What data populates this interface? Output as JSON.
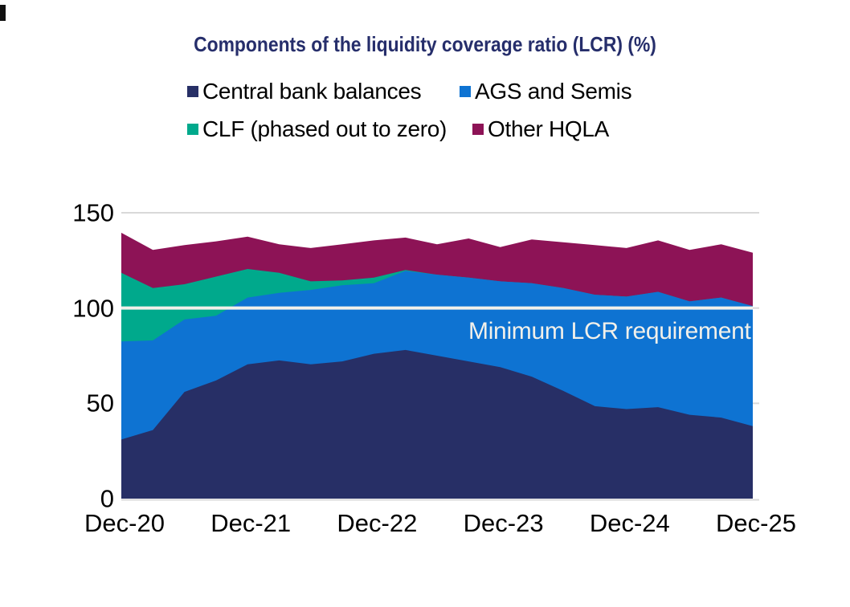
{
  "title": {
    "text": "Components of the liquidity coverage ratio (LCR) (%)",
    "color": "#262e6b"
  },
  "annotation": {
    "label": "Minimum LCR requirement"
  },
  "colors": {
    "background": "#ffffff",
    "gridline": "#d9d9d9",
    "axis_text": "#000000",
    "reference_line": "#f1f0ea"
  },
  "chart_data": {
    "type": "area",
    "stacked": true,
    "title": "Components of the liquidity coverage ratio (LCR) (%)",
    "legend_position": "top",
    "grid": "single line at 150 plus right-edge ticks",
    "ylim": [
      0,
      150
    ],
    "y_ticks": [
      150,
      100,
      50,
      0
    ],
    "x": [
      "Dec-20",
      "Mar-21",
      "Jun-21",
      "Sep-21",
      "Dec-21",
      "Mar-22",
      "Jun-22",
      "Sep-22",
      "Dec-22",
      "Mar-23",
      "Jun-23",
      "Sep-23",
      "Dec-23",
      "Mar-24",
      "Jun-24",
      "Sep-24",
      "Dec-24",
      "Mar-25",
      "Jun-25",
      "Sep-25",
      "Dec-25"
    ],
    "x_tick_labels": [
      "Dec-20",
      "Dec-21",
      "Dec-22",
      "Dec-23",
      "Dec-24",
      "Dec-25"
    ],
    "x_tick_indices": [
      0,
      4,
      8,
      12,
      16,
      20
    ],
    "series": [
      {
        "name": "Central bank balances",
        "color": "#272f66",
        "values": [
          31,
          36,
          56,
          62,
          70.5,
          72.5,
          70.5,
          72,
          76,
          78,
          75,
          72,
          69,
          64,
          56.5,
          48.5,
          47,
          48,
          44,
          42.5,
          38
        ]
      },
      {
        "name": "AGS and Semis",
        "color": "#0e73d2",
        "values": [
          51.5,
          47,
          38,
          34,
          35,
          35.5,
          39,
          40,
          37,
          41.5,
          42.5,
          44,
          45,
          49,
          54,
          58.5,
          59,
          60.5,
          59.5,
          63,
          63
        ]
      },
      {
        "name": "CLF (phased out to zero)",
        "color": "#00a98c",
        "values": [
          36,
          27.5,
          18.5,
          20.5,
          15,
          10.5,
          4.5,
          2.5,
          3,
          0.5,
          0,
          0,
          0,
          0,
          0,
          0,
          0,
          0,
          0,
          0,
          0
        ]
      },
      {
        "name": "Other HQLA",
        "color": "#8d1356",
        "values": [
          21,
          20,
          20.5,
          18.5,
          17,
          15,
          17.5,
          19,
          19.5,
          17,
          16,
          20.5,
          18,
          23,
          24,
          26,
          25.5,
          27,
          27,
          28,
          28
        ]
      }
    ],
    "reference_line": {
      "value": 100,
      "label": "Minimum LCR requirement",
      "color": "#f1f0ea"
    }
  }
}
